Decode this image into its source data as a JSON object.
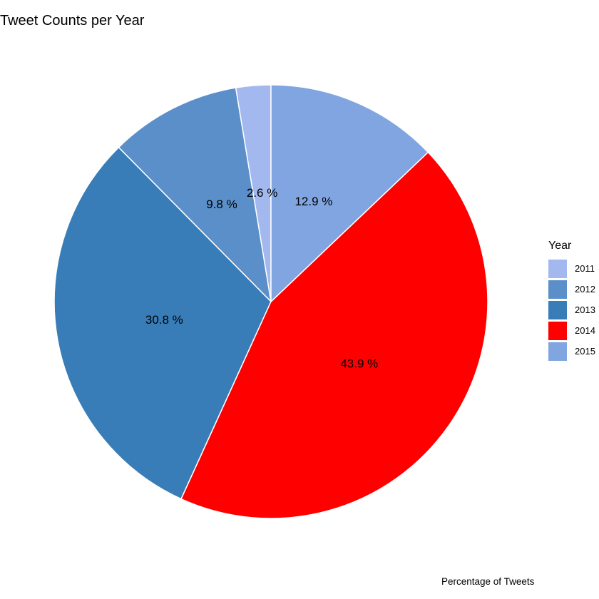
{
  "chart_data": {
    "type": "pie",
    "title": "Tweet Counts per Year",
    "caption": "Percentage of Tweets",
    "legend": {
      "title": "Year",
      "placement": "right"
    },
    "categories": [
      "2011",
      "2012",
      "2013",
      "2014",
      "2015"
    ],
    "values": [
      2.6,
      9.8,
      30.8,
      43.9,
      12.9
    ],
    "labels": [
      "2.6 %",
      "9.8 %",
      "30.8 %",
      "43.9 %",
      "12.9 %"
    ],
    "colors": [
      "#A3B8EE",
      "#5B8FC9",
      "#387DB8",
      "#FF0000",
      "#80A5E0"
    ],
    "start": "12 o'clock",
    "direction": "counterclockwise"
  }
}
